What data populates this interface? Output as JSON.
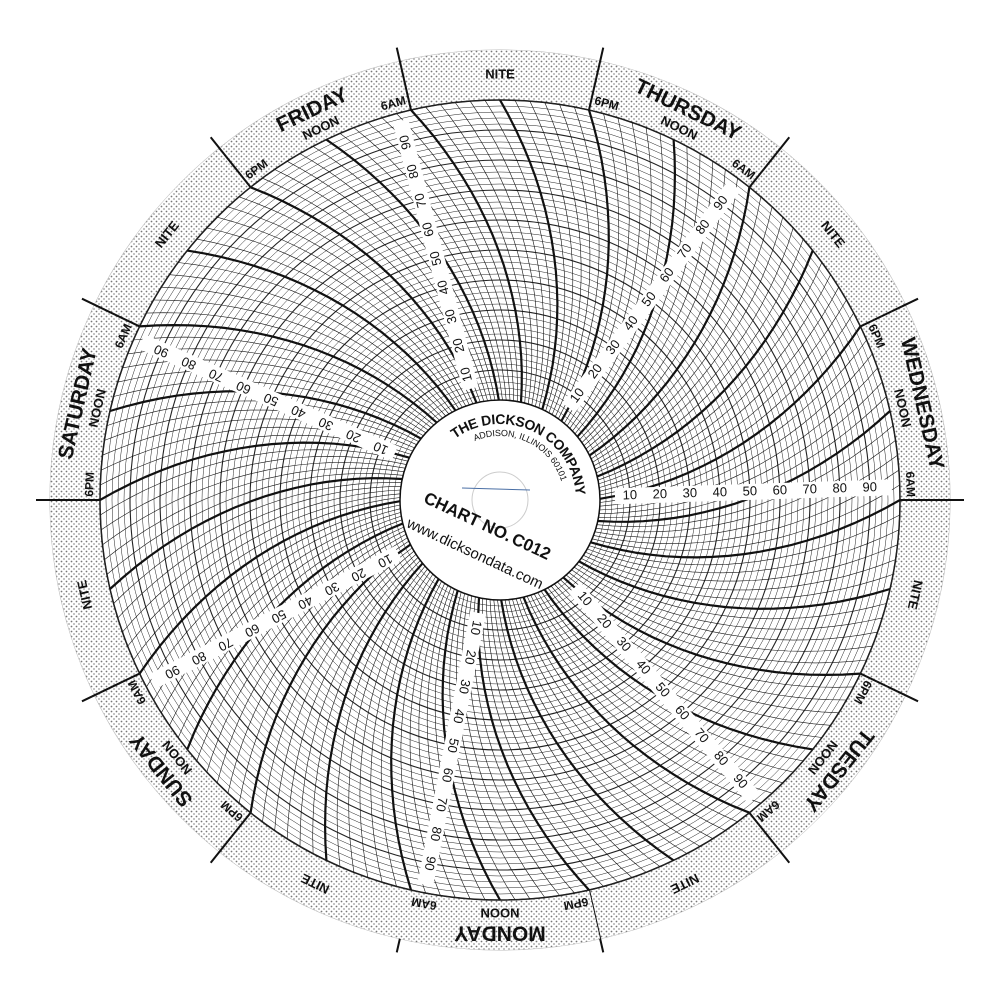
{
  "header": {
    "company": "THE DICKSON COMPANY",
    "address": "ADDISON, ILLINOIS 60101",
    "chart_label": "CHART NO.",
    "chart_number": "C012",
    "website": "www.dicksondata.com"
  },
  "days": [
    "MONDAY",
    "TUESDAY",
    "WEDNESDAY",
    "THURSDAY",
    "FRIDAY",
    "SATURDAY",
    "SUNDAY"
  ],
  "time_labels": {
    "am": "6AM",
    "noon": "NOON",
    "pm": "6PM",
    "night": "NITE"
  },
  "scale": [
    10,
    20,
    30,
    40,
    50,
    60,
    70,
    80,
    90
  ]
}
